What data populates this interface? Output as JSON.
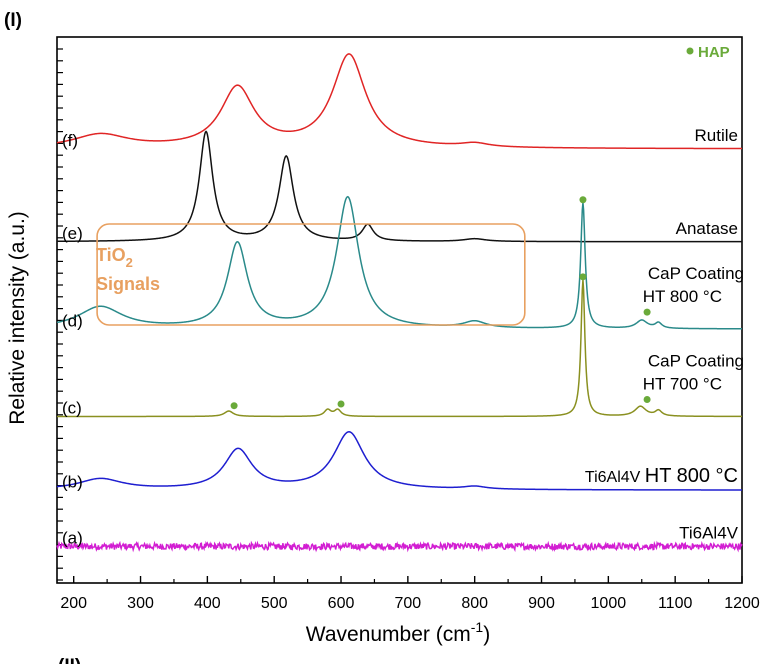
{
  "panel_label": "(I)",
  "next_panel_label": "(II)",
  "chart_data": {
    "type": "line",
    "title": "",
    "xlabel": "Wavenumber (cm",
    "xlabel_sup": "-1",
    "xlabel_close": ")",
    "ylabel": "Relative intensity (a.u.)",
    "xlim": [
      175,
      1200
    ],
    "xticks": [
      200,
      300,
      400,
      500,
      600,
      700,
      800,
      900,
      1000,
      1100,
      1200
    ],
    "grid": false,
    "legend": {
      "marker_color": "#6aaa3a",
      "label": "HAP",
      "placement": "top-right"
    },
    "box_annotation": {
      "label_line1": "TiO",
      "label_sub": "2",
      "label_line2": "Signals",
      "color": "#e8a060",
      "x_range": [
        235,
        875
      ]
    },
    "series": [
      {
        "id": "f",
        "letter": "(f)",
        "name": "Rutile",
        "color": "#e02525",
        "baseline": 0.795,
        "peaks": [
          [
            240,
            50,
            0.025
          ],
          [
            445,
            30,
            0.11
          ],
          [
            612,
            30,
            0.17
          ],
          [
            800,
            25,
            0.007
          ]
        ],
        "noise": 0.0
      },
      {
        "id": "e",
        "letter": "(e)",
        "name": "Anatase",
        "color": "#111111",
        "baseline": 0.625,
        "peaks": [
          [
            398,
            12,
            0.2
          ],
          [
            518,
            13,
            0.155
          ],
          [
            640,
            10,
            0.03
          ],
          [
            800,
            20,
            0.005
          ]
        ],
        "noise": 0.0
      },
      {
        "id": "d",
        "letter": "(d)",
        "name_line1": "CaP Coating",
        "name_line2": "HT 800 °C",
        "color": "#2a8a8a",
        "baseline": 0.465,
        "peaks": [
          [
            240,
            40,
            0.04
          ],
          [
            445,
            18,
            0.155
          ],
          [
            610,
            20,
            0.24
          ],
          [
            800,
            20,
            0.012
          ],
          [
            962,
            4,
            0.23
          ],
          [
            1050,
            10,
            0.015
          ],
          [
            1075,
            6,
            0.01
          ]
        ],
        "noise": 0.0,
        "hap_markers": [
          962,
          1058
        ]
      },
      {
        "id": "c",
        "letter": "(c)",
        "name_line1": "CaP Coating",
        "name_line2": "HT 700 °C",
        "color": "#8a9020",
        "baseline": 0.305,
        "peaks": [
          [
            432,
            8,
            0.01
          ],
          [
            580,
            6,
            0.012
          ],
          [
            595,
            6,
            0.012
          ],
          [
            962,
            3.5,
            0.25
          ],
          [
            1048,
            10,
            0.018
          ],
          [
            1075,
            6,
            0.01
          ]
        ],
        "noise": 0.0,
        "hap_markers": [
          440,
          600,
          962,
          1058
        ]
      },
      {
        "id": "b",
        "letter": "(b)",
        "name_line1": "Ti6Al4V",
        "name_line2": "HT 800 °C",
        "color": "#1e1ed0",
        "baseline": 0.17,
        "peaks": [
          [
            240,
            40,
            0.02
          ],
          [
            446,
            25,
            0.073
          ],
          [
            612,
            28,
            0.105
          ],
          [
            800,
            20,
            0.005
          ]
        ],
        "noise": 0.0
      },
      {
        "id": "a",
        "letter": "(a)",
        "name": "Ti6Al4V",
        "color": "#d21ed2",
        "baseline": 0.067,
        "peaks": [],
        "noise": 0.006
      }
    ]
  }
}
